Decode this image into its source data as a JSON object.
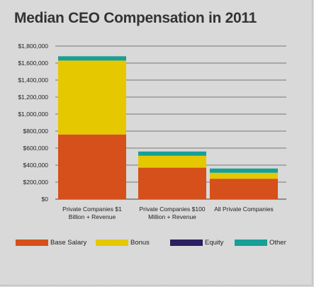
{
  "chart_data": {
    "type": "bar",
    "stacked": true,
    "title": "Median CEO Compensation in 2011",
    "categories": [
      [
        "Private Companies $1",
        "Billion + Revenue"
      ],
      [
        "Private Companies $100",
        "Million + Revenue"
      ],
      [
        "All Private Companies"
      ]
    ],
    "series": [
      {
        "name": "Base Salary",
        "color": "#d5501a",
        "values": [
          760000,
          370000,
          240000
        ]
      },
      {
        "name": "Bonus",
        "color": "#e6c800",
        "values": [
          870000,
          140000,
          70000
        ]
      },
      {
        "name": "Equity",
        "color": "#2a2060",
        "values": [
          0,
          0,
          0
        ]
      },
      {
        "name": "Other",
        "color": "#16a096",
        "values": [
          50000,
          50000,
          50000
        ]
      }
    ],
    "y_ticks": [
      "$1,800,000",
      "$1,600,000",
      "$1,400,000",
      "$1,200,000",
      "$1,000,000",
      "$800,000",
      "$600,000",
      "$400,000",
      "$200,000",
      "$0"
    ],
    "ylim": [
      0,
      1800000
    ],
    "grid": true,
    "legend_position": "bottom"
  }
}
